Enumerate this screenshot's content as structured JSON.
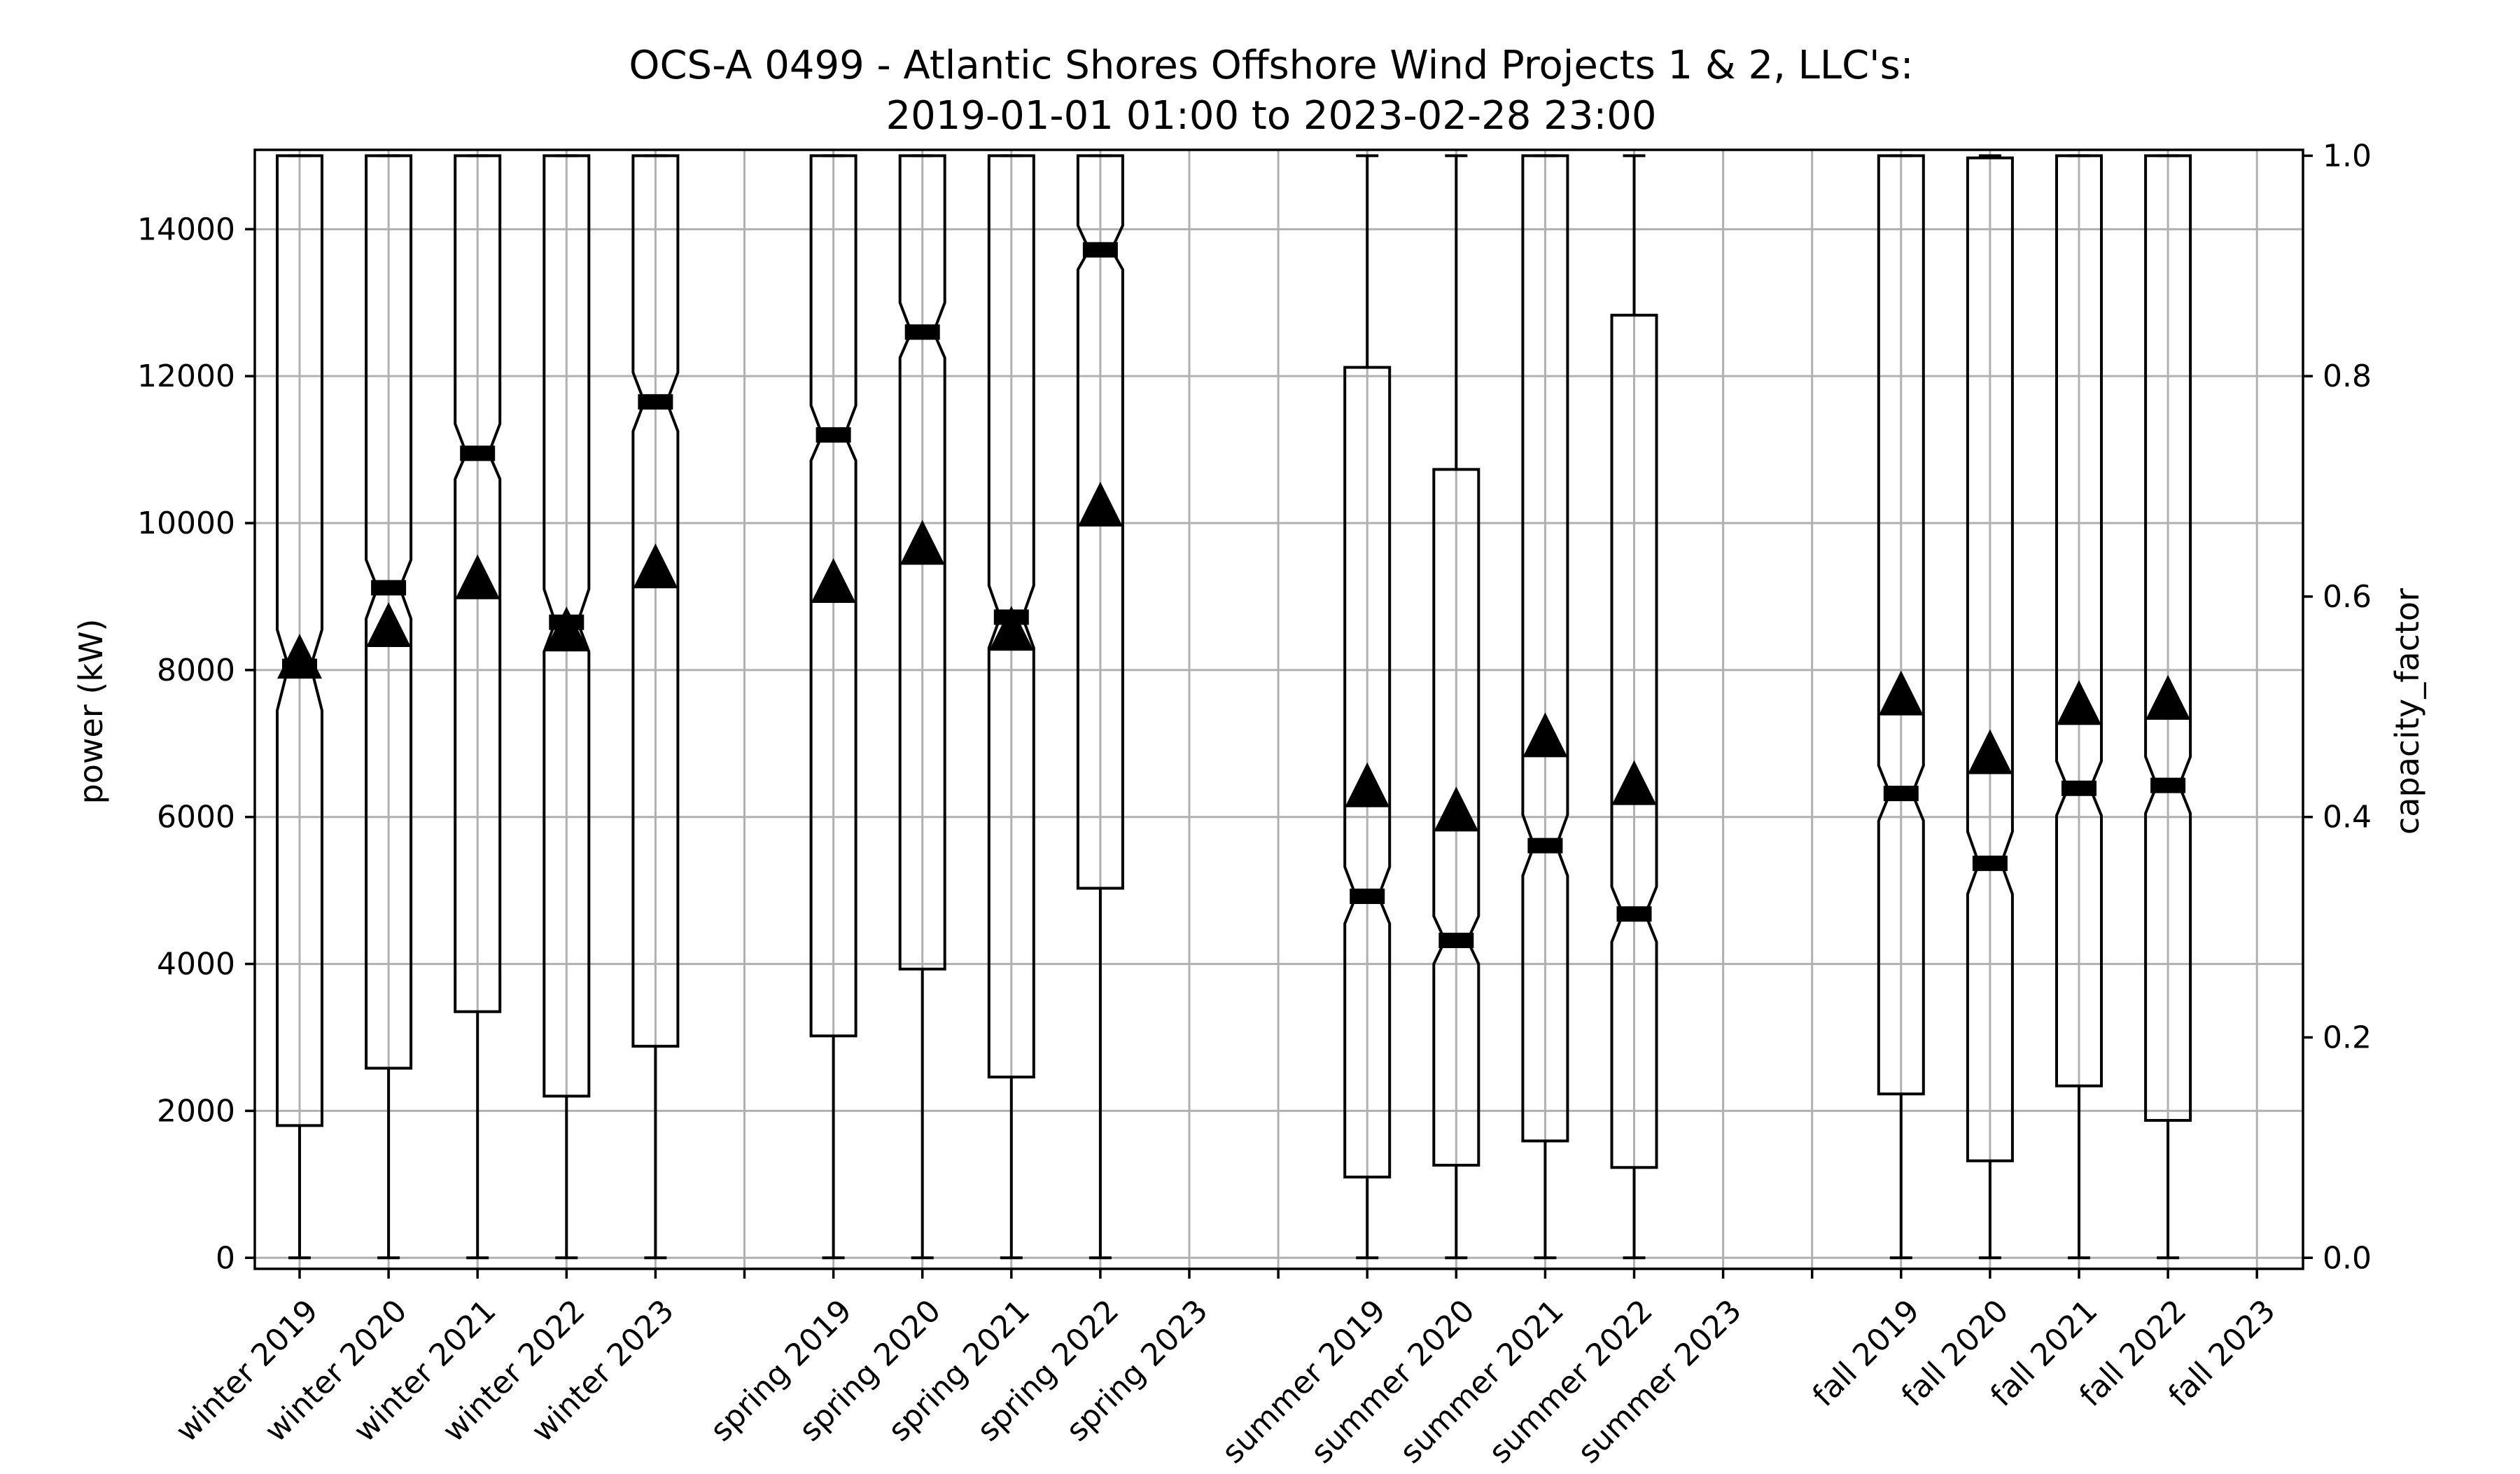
{
  "chart_data": {
    "type": "boxplot",
    "title_line1": "OCS-A 0499 - Atlantic Shores Offshore Wind Projects 1 & 2, LLC's:",
    "title_line2": "2019-01-01 01:00 to 2023-02-28 23:00",
    "ylabel": "power (kW)",
    "y2label": "capacity_factor",
    "ylim": [
      -150,
      15080
    ],
    "y_ticks": [
      0,
      2000,
      4000,
      6000,
      8000,
      10000,
      12000,
      14000
    ],
    "y2_ticks": [
      "0.0",
      "0.2",
      "0.4",
      "0.6",
      "0.8",
      "1.0"
    ],
    "y2_values": [
      0.0,
      0.2,
      0.4,
      0.6,
      0.8,
      1.0
    ],
    "capacity_kw": 15000,
    "grid": true,
    "notched": true,
    "mean_marker": "triangle",
    "categories": [
      "winter 2019",
      "winter 2020",
      "winter 2021",
      "winter 2022",
      "winter 2023",
      "",
      "spring 2019",
      "spring 2020",
      "spring 2021",
      "spring 2022",
      "spring 2023",
      "",
      "summer 2019",
      "summer 2020",
      "summer 2021",
      "summer 2022",
      "summer 2023",
      "",
      "fall 2019",
      "fall 2020",
      "fall 2021",
      "fall 2022",
      "fall 2023"
    ],
    "boxes": [
      {
        "category": "winter 2019",
        "whislo": 0,
        "q1": 1800,
        "med": 8050,
        "q3": 15000,
        "whishi": 15000,
        "mean": 8150,
        "notch": [
          7450,
          8550
        ]
      },
      {
        "category": "winter 2020",
        "whislo": 0,
        "q1": 2580,
        "med": 9120,
        "q3": 15000,
        "whishi": 15000,
        "mean": 8580,
        "notch": [
          8700,
          9500
        ]
      },
      {
        "category": "winter 2021",
        "whislo": 0,
        "q1": 3350,
        "med": 10950,
        "q3": 15000,
        "whishi": 15000,
        "mean": 9230,
        "notch": [
          10600,
          11350
        ]
      },
      {
        "category": "winter 2022",
        "whislo": 0,
        "q1": 2200,
        "med": 8650,
        "q3": 15000,
        "whishi": 15000,
        "mean": 8520,
        "notch": [
          8250,
          9100
        ]
      },
      {
        "category": "winter 2023",
        "whislo": 0,
        "q1": 2880,
        "med": 11650,
        "q3": 15000,
        "whishi": 15000,
        "mean": 9380,
        "notch": [
          11250,
          12050
        ]
      },
      {
        "category": "spring 2019",
        "whislo": 0,
        "q1": 3020,
        "med": 11200,
        "q3": 15000,
        "whishi": 15000,
        "mean": 9180,
        "notch": [
          10850,
          11600
        ]
      },
      {
        "category": "spring 2020",
        "whislo": 0,
        "q1": 3930,
        "med": 12600,
        "q3": 15000,
        "whishi": 15000,
        "mean": 9700,
        "notch": [
          12250,
          13000
        ]
      },
      {
        "category": "spring 2021",
        "whislo": 0,
        "q1": 2460,
        "med": 8720,
        "q3": 15000,
        "whishi": 15000,
        "mean": 8530,
        "notch": [
          8300,
          9150
        ]
      },
      {
        "category": "spring 2022",
        "whislo": 0,
        "q1": 5030,
        "med": 13720,
        "q3": 15000,
        "whishi": 15000,
        "mean": 10220,
        "notch": [
          13450,
          14050
        ]
      },
      {
        "category": "spring 2023"
      },
      {
        "category": "summer 2019",
        "whislo": 0,
        "q1": 1100,
        "med": 4920,
        "q3": 12120,
        "whishi": 15000,
        "mean": 6400,
        "notch": [
          4550,
          5320
        ]
      },
      {
        "category": "summer 2020",
        "whislo": 0,
        "q1": 1260,
        "med": 4320,
        "q3": 10730,
        "whishi": 15000,
        "mean": 6070,
        "notch": [
          4000,
          4650
        ]
      },
      {
        "category": "summer 2021",
        "whislo": 0,
        "q1": 1590,
        "med": 5610,
        "q3": 15000,
        "whishi": 15000,
        "mean": 7080,
        "notch": [
          5200,
          6030
        ]
      },
      {
        "category": "summer 2022",
        "whislo": 0,
        "q1": 1230,
        "med": 4680,
        "q3": 12830,
        "whishi": 15000,
        "mean": 6430,
        "notch": [
          4300,
          5050
        ]
      },
      {
        "category": "summer 2023"
      },
      {
        "category": "fall 2019",
        "whislo": 0,
        "q1": 2230,
        "med": 6320,
        "q3": 15000,
        "whishi": 15000,
        "mean": 7650,
        "notch": [
          5950,
          6700
        ]
      },
      {
        "category": "fall 2020",
        "whislo": 0,
        "q1": 1320,
        "med": 5370,
        "q3": 14970,
        "whishi": 15000,
        "mean": 6850,
        "notch": [
          4950,
          5800
        ]
      },
      {
        "category": "fall 2021",
        "whislo": 0,
        "q1": 2340,
        "med": 6390,
        "q3": 15000,
        "whishi": 15000,
        "mean": 7520,
        "notch": [
          6020,
          6760
        ]
      },
      {
        "category": "fall 2022",
        "whislo": 0,
        "q1": 1870,
        "med": 6430,
        "q3": 15000,
        "whishi": 15000,
        "mean": 7590,
        "notch": [
          6050,
          6820
        ]
      },
      {
        "category": "fall 2023"
      }
    ]
  }
}
